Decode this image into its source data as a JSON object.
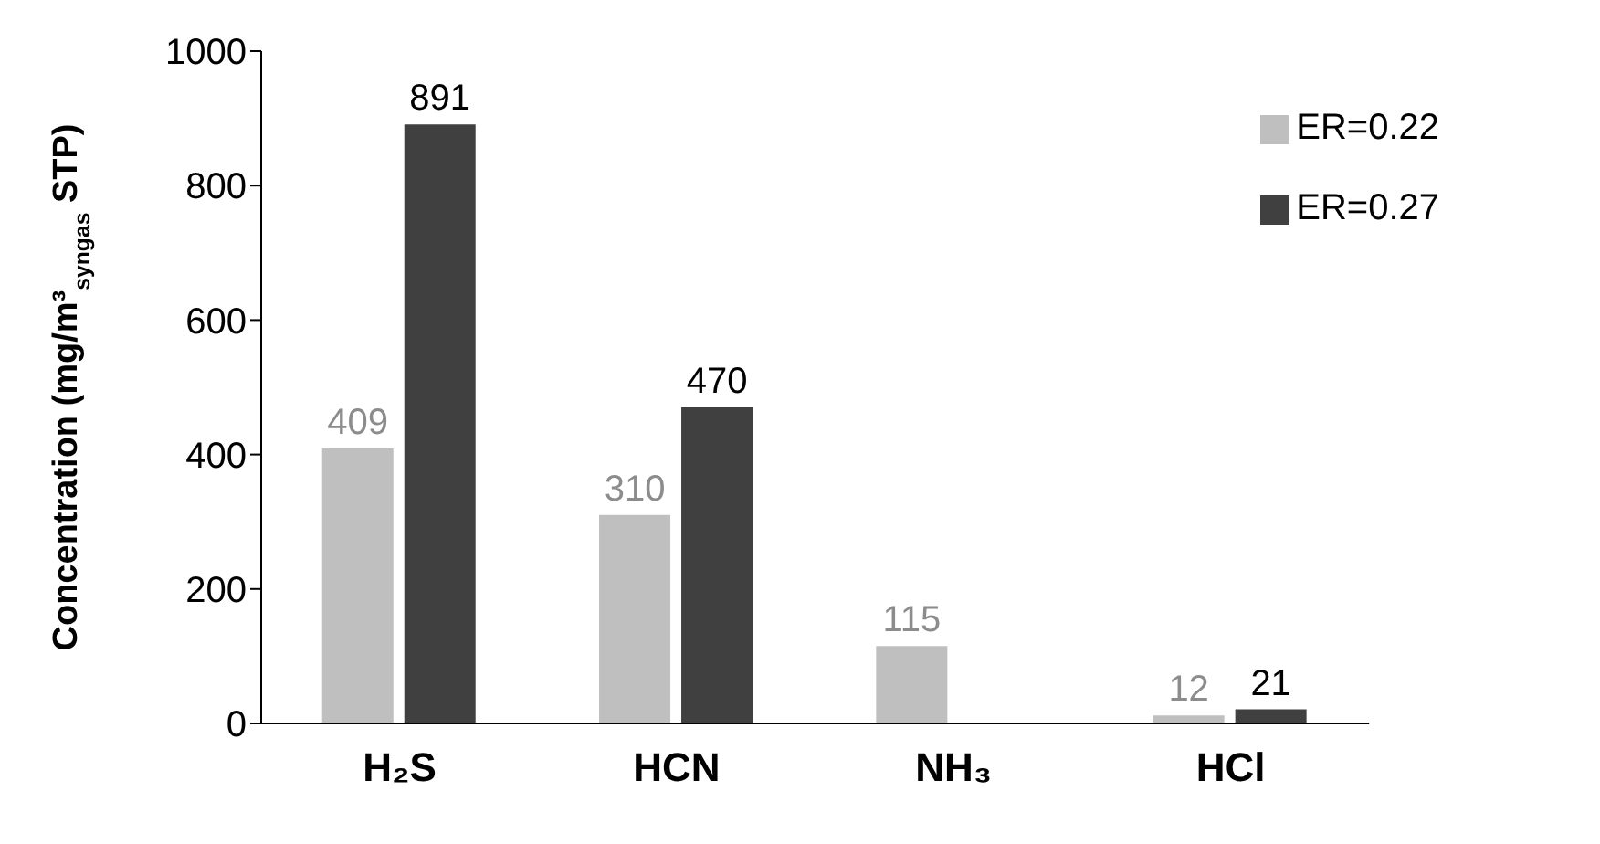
{
  "chart_data": {
    "type": "bar",
    "ylabel": "Concentration (mg/m³$_{syngas}$ STP)",
    "categories": [
      "H₂S",
      "HCN",
      "NH₃",
      "HCl"
    ],
    "series": [
      {
        "name": "ER=0.22",
        "color": "#bfbfbf",
        "values": [
          409,
          310,
          115,
          12
        ]
      },
      {
        "name": "ER=0.27",
        "color": "#404040",
        "values": [
          891,
          470,
          null,
          21
        ]
      }
    ],
    "ylim": [
      0,
      1000
    ],
    "yticks": [
      0,
      200,
      400,
      600,
      800,
      1000
    ],
    "data_labels": true,
    "legend": "top right",
    "grid": false
  }
}
